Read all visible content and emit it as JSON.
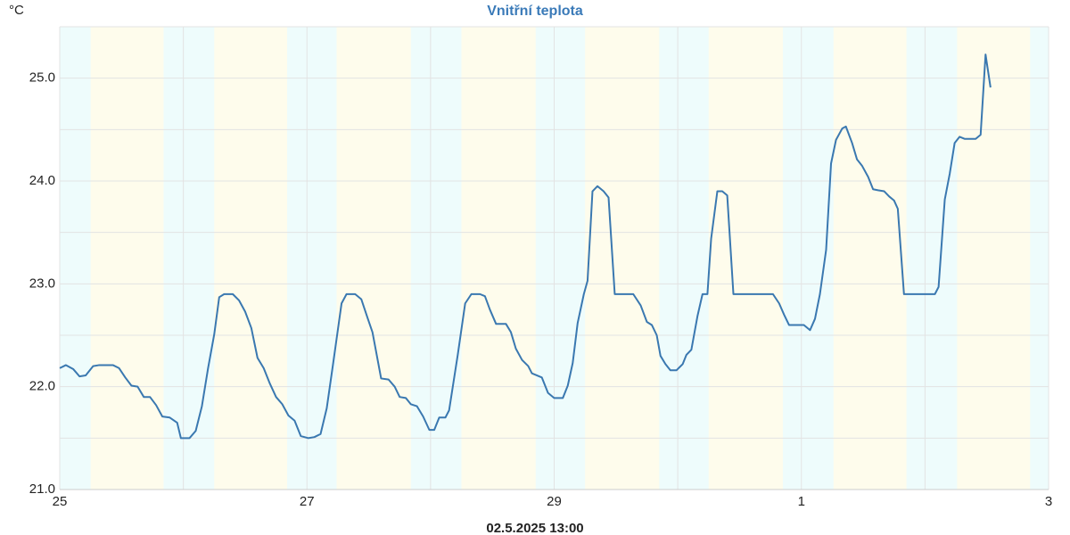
{
  "chart_data": {
    "type": "line",
    "title": "Vnitřní teplota",
    "y_unit": "°C",
    "footer": "02.5.2025 13:00",
    "xlim": [
      0,
      8
    ],
    "xticks": [
      {
        "value": 0,
        "label": "25"
      },
      {
        "value": 2,
        "label": "27"
      },
      {
        "value": 4,
        "label": "29"
      },
      {
        "value": 6,
        "label": "1"
      },
      {
        "value": 8,
        "label": "3"
      }
    ],
    "x_minor_grid": [
      1,
      3,
      5,
      7
    ],
    "ylim": [
      21,
      25.5
    ],
    "yticks": [
      {
        "value": 21,
        "label": "21.0"
      },
      {
        "value": 22,
        "label": "22.0"
      },
      {
        "value": 23,
        "label": "23.0"
      },
      {
        "value": 24,
        "label": "24.0"
      },
      {
        "value": 25,
        "label": "25.0"
      }
    ],
    "y_minor_grid": [
      21.5,
      22.5,
      23.5,
      24.5,
      25.5
    ],
    "grid": true,
    "night_color": "#eefcfc",
    "day_color": "#fefcec",
    "day_periods": [
      [
        0.25,
        0.84
      ],
      [
        1.25,
        1.84
      ],
      [
        2.24,
        2.84
      ],
      [
        3.25,
        3.85
      ],
      [
        4.25,
        4.85
      ],
      [
        5.25,
        5.85
      ],
      [
        6.26,
        6.85
      ],
      [
        7.26,
        7.85
      ]
    ],
    "series": [
      {
        "name": "Vnitřní teplota",
        "color": "#3a78b0",
        "x": [
          0,
          0.05,
          0.11,
          0.16,
          0.21,
          0.27,
          0.32,
          0.43,
          0.48,
          0.53,
          0.58,
          0.63,
          0.68,
          0.73,
          0.78,
          0.83,
          0.89,
          0.95,
          0.98,
          1.05,
          1.1,
          1.15,
          1.2,
          1.25,
          1.29,
          1.33,
          1.4,
          1.45,
          1.5,
          1.55,
          1.6,
          1.65,
          1.7,
          1.75,
          1.8,
          1.85,
          1.9,
          1.95,
          2.01,
          2.06,
          2.11,
          2.16,
          2.21,
          2.28,
          2.32,
          2.39,
          2.44,
          2.49,
          2.53,
          2.6,
          2.66,
          2.71,
          2.75,
          2.8,
          2.84,
          2.89,
          2.94,
          2.99,
          3.03,
          3.07,
          3.12,
          3.15,
          3.22,
          3.28,
          3.33,
          3.4,
          3.44,
          3.48,
          3.53,
          3.61,
          3.65,
          3.69,
          3.74,
          3.79,
          3.82,
          3.9,
          3.95,
          4.0,
          4.07,
          4.11,
          4.15,
          4.19,
          4.24,
          4.27,
          4.31,
          4.35,
          4.4,
          4.44,
          4.49,
          4.64,
          4.7,
          4.75,
          4.79,
          4.83,
          4.86,
          4.9,
          4.94,
          4.99,
          5.04,
          5.07,
          5.11,
          5.16,
          5.2,
          5.24,
          5.27,
          5.32,
          5.36,
          5.4,
          5.45,
          5.77,
          5.82,
          5.86,
          5.9,
          6.02,
          6.07,
          6.11,
          6.15,
          6.2,
          6.24,
          6.28,
          6.33,
          6.36,
          6.41,
          6.45,
          6.49,
          6.54,
          6.58,
          6.62,
          6.67,
          6.71,
          6.75,
          6.78,
          6.83,
          7.08,
          7.11,
          7.16,
          7.2,
          7.24,
          7.28,
          7.32,
          7.41,
          7.45,
          7.49,
          7.53
        ],
        "values": [
          22.18,
          22.21,
          22.17,
          22.1,
          22.11,
          22.2,
          22.21,
          22.21,
          22.18,
          22.09,
          22.01,
          22.0,
          21.9,
          21.9,
          21.82,
          21.71,
          21.7,
          21.65,
          21.5,
          21.5,
          21.57,
          21.81,
          22.18,
          22.51,
          22.87,
          22.9,
          22.9,
          22.84,
          22.73,
          22.57,
          22.28,
          22.18,
          22.03,
          21.9,
          21.83,
          21.72,
          21.67,
          21.52,
          21.5,
          21.51,
          21.54,
          21.79,
          22.21,
          22.81,
          22.9,
          22.9,
          22.85,
          22.67,
          22.53,
          22.08,
          22.07,
          22.0,
          21.9,
          21.89,
          21.83,
          21.81,
          21.71,
          21.58,
          21.58,
          21.7,
          21.7,
          21.77,
          22.31,
          22.81,
          22.9,
          22.9,
          22.88,
          22.75,
          22.61,
          22.61,
          22.53,
          22.37,
          22.26,
          22.2,
          22.13,
          22.09,
          21.94,
          21.89,
          21.89,
          22.01,
          22.23,
          22.62,
          22.9,
          23.03,
          23.9,
          23.95,
          23.9,
          23.84,
          22.9,
          22.9,
          22.79,
          22.63,
          22.6,
          22.5,
          22.3,
          22.22,
          22.16,
          22.16,
          22.22,
          22.31,
          22.36,
          22.69,
          22.9,
          22.9,
          23.44,
          23.9,
          23.9,
          23.86,
          22.9,
          22.9,
          22.81,
          22.7,
          22.6,
          22.6,
          22.55,
          22.66,
          22.9,
          23.33,
          24.17,
          24.4,
          24.51,
          24.53,
          24.37,
          24.21,
          24.15,
          24.04,
          23.92,
          23.91,
          23.9,
          23.85,
          23.81,
          23.73,
          22.9,
          22.9,
          22.97,
          23.82,
          24.07,
          24.37,
          24.43,
          24.41,
          24.41,
          24.45,
          25.23,
          24.91
        ]
      }
    ]
  }
}
